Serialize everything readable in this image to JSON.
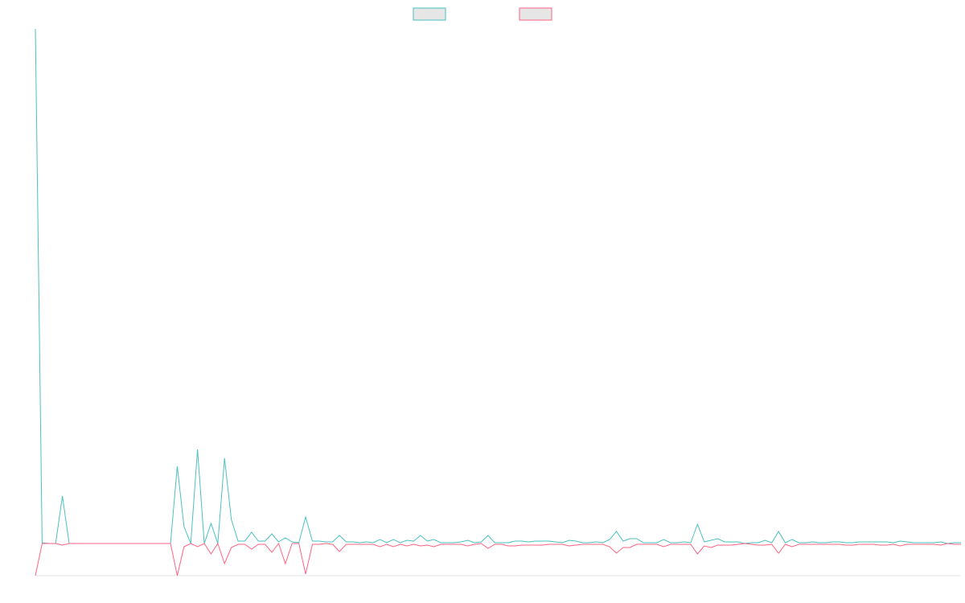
{
  "chart_data": {
    "type": "line",
    "legend": "top",
    "ylim": [
      -4,
      64
    ],
    "series": [
      {
        "color": "#4bc0c0",
        "values": [
          64,
          0.1,
          0,
          0,
          5.9,
          0,
          0,
          0,
          0,
          0,
          0,
          0,
          0,
          0,
          0,
          0,
          0,
          0,
          0,
          0,
          0,
          9.6,
          2.1,
          0,
          11.7,
          0,
          2.5,
          0,
          10.6,
          3,
          0.3,
          0.3,
          1.4,
          0.3,
          0.3,
          1.2,
          0.2,
          0.7,
          0.2,
          0.1,
          3.3,
          0.3,
          0.3,
          0.2,
          0.2,
          1,
          0.2,
          0.2,
          0.1,
          0.2,
          0.1,
          0.5,
          0.1,
          0.5,
          0.1,
          0.4,
          0.3,
          1.0,
          0.3,
          0.5,
          0.1,
          0.1,
          0.1,
          0.2,
          0.4,
          0.1,
          0.2,
          1.0,
          0.1,
          0.1,
          0.1,
          0.3,
          0.3,
          0.2,
          0.3,
          0.3,
          0.3,
          0.2,
          0.1,
          0.4,
          0.3,
          0.1,
          0.1,
          0.2,
          0.1,
          0.5,
          1.5,
          0.3,
          0.6,
          0.6,
          0.1,
          0.1,
          0.1,
          0.5,
          0.1,
          0.1,
          0.2,
          0.1,
          2.4,
          0.2,
          0.4,
          0.6,
          0.2,
          0.2,
          0.2,
          0,
          0.1,
          0.1,
          0.4,
          0.1,
          1.5,
          0.1,
          0.5,
          0.1,
          0.1,
          0.2,
          0.1,
          0.1,
          0.2,
          0.2,
          0.1,
          0.1,
          0.2,
          0.2,
          0.2,
          0.2,
          0.2,
          0.1,
          0.3,
          0.2,
          0.1,
          0.1,
          0.1,
          0.1,
          0.2,
          0,
          0.1,
          0.1
        ]
      },
      {
        "color": "#ff6384",
        "values": [
          -4,
          0,
          0,
          0,
          -0.2,
          0,
          0,
          0,
          0,
          0,
          0,
          0,
          0,
          0,
          0,
          0,
          0,
          0,
          0,
          0,
          0,
          -4,
          -0.4,
          0,
          -0.4,
          0,
          -1.3,
          0,
          -2.5,
          -0.5,
          -0.1,
          -0.1,
          -0.7,
          -0.1,
          -0.1,
          -1.1,
          0,
          -2.5,
          0,
          0,
          -3.8,
          -0.1,
          -0.1,
          0,
          -0.1,
          -1,
          -0.1,
          -0.1,
          -0.1,
          -0.1,
          -0.1,
          -0.4,
          -0.1,
          -0.4,
          -0.1,
          -0.3,
          -0.1,
          -0.3,
          -0.2,
          -0.4,
          -0.1,
          -0.1,
          -0.1,
          -0.1,
          -0.3,
          -0.1,
          0,
          -0.6,
          -0.1,
          -0.1,
          -0.3,
          -0.3,
          -0.2,
          -0.2,
          -0.2,
          -0.2,
          -0.1,
          -0.1,
          -0.1,
          -0.3,
          -0.2,
          -0.1,
          -0.1,
          -0.1,
          -0.1,
          -0.4,
          -1.2,
          -0.5,
          -0.5,
          -0.1,
          -0.1,
          -0.1,
          -0.1,
          -0.4,
          -0.1,
          -0.1,
          -0.1,
          -0.1,
          -1.3,
          -0.3,
          -0.5,
          -0.2,
          -0.2,
          -0.2,
          -0.1,
          0,
          -0.1,
          -0.2,
          -0.2,
          -0.1,
          -1.2,
          -0.1,
          -0.4,
          -0.1,
          -0.1,
          -0.1,
          -0.1,
          -0.1,
          -0.1,
          -0.1,
          -0.2,
          -0.2,
          -0.1,
          -0.1,
          -0.1,
          -0.2,
          -0.2,
          -0.1,
          -0.3,
          -0.1,
          -0.1,
          -0.1,
          -0.1,
          -0.1,
          -0.2,
          0,
          -0.1,
          -0.1
        ]
      }
    ]
  }
}
